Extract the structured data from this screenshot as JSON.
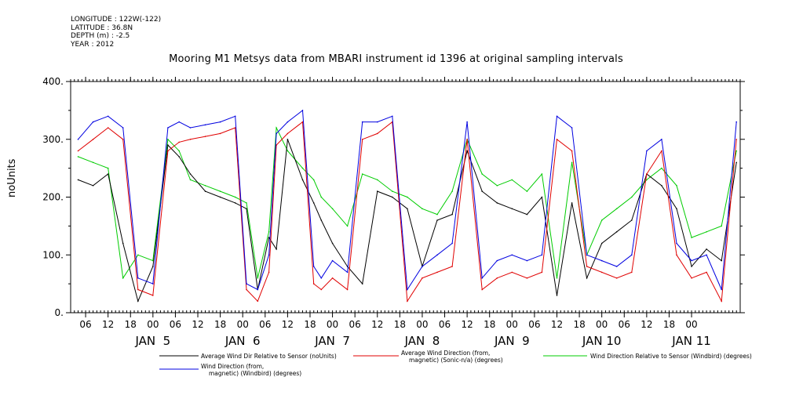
{
  "header": {
    "meta_lines": [
      "LONGITUDE : 122W(-122)",
      "LATITUDE : 36.8N",
      "DEPTH (m) : -2.5",
      "YEAR : 2012"
    ],
    "title": "Mooring M1 Metsys data from MBARI instrument id 1396 at original sampling intervals"
  },
  "chart_data": {
    "type": "line",
    "title": "Mooring M1 Metsys data from MBARI instrument id 1396 at original sampling intervals",
    "xlabel": "",
    "ylabel": "noUnits",
    "ylim": [
      0,
      400
    ],
    "xlim": [
      "2012-01-04T14:00",
      "2012-01-12T01:00"
    ],
    "y_ticks": [
      0,
      100,
      200,
      300,
      400
    ],
    "y_tick_labels": [
      "0.",
      "100.",
      "200.",
      "300.",
      "400."
    ],
    "x_tick_hours": [
      "06",
      "12",
      "18",
      "00",
      "06",
      "12",
      "18",
      "00",
      "06",
      "12",
      "18",
      "00",
      "06",
      "12",
      "18",
      "00",
      "06",
      "12",
      "18",
      "00",
      "06",
      "12",
      "18",
      "00",
      "06",
      "12",
      "18",
      "00"
    ],
    "day_labels": [
      "JAN  5",
      "JAN  6",
      "JAN  7",
      "JAN  8",
      "JAN  9",
      "JAN 10",
      "JAN 11"
    ],
    "grid": false,
    "legend_position": "bottom",
    "colors": {
      "series1": "#000000",
      "series2": "#e00000",
      "series3": "#00cc00",
      "series4": "#0000e0"
    },
    "series": [
      {
        "name": "Average Wind Dir Relative to Sensor (noUnits)",
        "x": [
          "2012-01-04T16:00",
          "2012-01-04T20:00",
          "2012-01-05T00:00",
          "2012-01-05T04:00",
          "2012-01-05T08:00",
          "2012-01-05T12:00",
          "2012-01-05T16:00",
          "2012-01-05T19:00",
          "2012-01-05T22:00",
          "2012-01-06T02:00",
          "2012-01-06T06:00",
          "2012-01-06T10:00",
          "2012-01-06T13:00",
          "2012-01-06T16:00",
          "2012-01-06T19:00",
          "2012-01-06T21:00",
          "2012-01-07T00:00",
          "2012-01-07T04:00",
          "2012-01-07T07:00",
          "2012-01-07T09:00",
          "2012-01-07T12:00",
          "2012-01-07T16:00",
          "2012-01-07T20:00",
          "2012-01-08T00:00",
          "2012-01-08T04:00",
          "2012-01-08T08:00",
          "2012-01-08T12:00",
          "2012-01-08T16:00",
          "2012-01-08T20:00",
          "2012-01-09T00:00",
          "2012-01-09T04:00",
          "2012-01-09T08:00",
          "2012-01-09T12:00",
          "2012-01-09T16:00",
          "2012-01-09T20:00",
          "2012-01-10T00:00",
          "2012-01-10T04:00",
          "2012-01-10T08:00",
          "2012-01-10T12:00",
          "2012-01-10T16:00",
          "2012-01-10T20:00",
          "2012-01-11T00:00",
          "2012-01-11T04:00",
          "2012-01-11T08:00",
          "2012-01-11T12:00",
          "2012-01-11T16:00",
          "2012-01-11T20:00",
          "2012-01-12T00:00"
        ],
        "values": [
          230,
          220,
          240,
          120,
          20,
          80,
          290,
          270,
          240,
          210,
          200,
          190,
          180,
          40,
          130,
          110,
          300,
          230,
          190,
          160,
          120,
          80,
          50,
          210,
          200,
          180,
          80,
          160,
          170,
          280,
          210,
          190,
          180,
          170,
          200,
          30,
          190,
          60,
          120,
          140,
          160,
          240,
          220,
          180,
          80,
          110,
          90,
          260
        ]
      },
      {
        "name": "Average Wind Direction (from, magnetic) (Sonic-n/a) (degrees)",
        "x": [
          "2012-01-04T16:00",
          "2012-01-04T20:00",
          "2012-01-05T00:00",
          "2012-01-05T04:00",
          "2012-01-05T08:00",
          "2012-01-05T12:00",
          "2012-01-05T16:00",
          "2012-01-05T19:00",
          "2012-01-05T22:00",
          "2012-01-06T02:00",
          "2012-01-06T06:00",
          "2012-01-06T10:00",
          "2012-01-06T13:00",
          "2012-01-06T16:00",
          "2012-01-06T19:00",
          "2012-01-06T21:00",
          "2012-01-07T00:00",
          "2012-01-07T04:00",
          "2012-01-07T07:00",
          "2012-01-07T09:00",
          "2012-01-07T12:00",
          "2012-01-07T16:00",
          "2012-01-07T20:00",
          "2012-01-08T00:00",
          "2012-01-08T04:00",
          "2012-01-08T08:00",
          "2012-01-08T12:00",
          "2012-01-08T16:00",
          "2012-01-08T20:00",
          "2012-01-09T00:00",
          "2012-01-09T04:00",
          "2012-01-09T08:00",
          "2012-01-09T12:00",
          "2012-01-09T16:00",
          "2012-01-09T20:00",
          "2012-01-10T00:00",
          "2012-01-10T04:00",
          "2012-01-10T08:00",
          "2012-01-10T12:00",
          "2012-01-10T16:00",
          "2012-01-10T20:00",
          "2012-01-11T00:00",
          "2012-01-11T04:00",
          "2012-01-11T08:00",
          "2012-01-11T12:00",
          "2012-01-11T16:00",
          "2012-01-11T20:00",
          "2012-01-12T00:00"
        ],
        "values": [
          280,
          300,
          320,
          300,
          40,
          30,
          280,
          295,
          300,
          305,
          310,
          320,
          40,
          20,
          70,
          290,
          310,
          330,
          50,
          40,
          60,
          40,
          300,
          310,
          330,
          20,
          60,
          70,
          80,
          300,
          40,
          60,
          70,
          60,
          70,
          300,
          280,
          80,
          70,
          60,
          70,
          240,
          280,
          100,
          60,
          70,
          20,
          300
        ]
      },
      {
        "name": "Wind Direction Relative to Sensor (Windbird) (degrees)",
        "x": [
          "2012-01-04T16:00",
          "2012-01-04T20:00",
          "2012-01-05T00:00",
          "2012-01-05T04:00",
          "2012-01-05T08:00",
          "2012-01-05T12:00",
          "2012-01-05T16:00",
          "2012-01-05T19:00",
          "2012-01-05T22:00",
          "2012-01-06T02:00",
          "2012-01-06T06:00",
          "2012-01-06T10:00",
          "2012-01-06T13:00",
          "2012-01-06T16:00",
          "2012-01-06T19:00",
          "2012-01-06T21:00",
          "2012-01-07T00:00",
          "2012-01-07T04:00",
          "2012-01-07T07:00",
          "2012-01-07T09:00",
          "2012-01-07T12:00",
          "2012-01-07T16:00",
          "2012-01-07T20:00",
          "2012-01-08T00:00",
          "2012-01-08T04:00",
          "2012-01-08T08:00",
          "2012-01-08T12:00",
          "2012-01-08T16:00",
          "2012-01-08T20:00",
          "2012-01-09T00:00",
          "2012-01-09T04:00",
          "2012-01-09T08:00",
          "2012-01-09T12:00",
          "2012-01-09T16:00",
          "2012-01-09T20:00",
          "2012-01-10T00:00",
          "2012-01-10T04:00",
          "2012-01-10T08:00",
          "2012-01-10T12:00",
          "2012-01-10T16:00",
          "2012-01-10T20:00",
          "2012-01-11T00:00",
          "2012-01-11T04:00",
          "2012-01-11T08:00",
          "2012-01-11T12:00",
          "2012-01-11T16:00",
          "2012-01-11T20:00",
          "2012-01-12T00:00"
        ],
        "values": [
          270,
          260,
          250,
          60,
          100,
          90,
          300,
          280,
          230,
          220,
          210,
          200,
          190,
          60,
          140,
          320,
          280,
          250,
          230,
          200,
          180,
          150,
          240,
          230,
          210,
          200,
          180,
          170,
          210,
          300,
          240,
          220,
          230,
          210,
          240,
          60,
          260,
          100,
          160,
          180,
          200,
          230,
          250,
          220,
          130,
          140,
          150,
          280
        ]
      },
      {
        "name": "Wind Direction (from, magnetic) (Windbird) (degrees)",
        "x": [
          "2012-01-04T16:00",
          "2012-01-04T20:00",
          "2012-01-05T00:00",
          "2012-01-05T04:00",
          "2012-01-05T08:00",
          "2012-01-05T12:00",
          "2012-01-05T16:00",
          "2012-01-05T19:00",
          "2012-01-05T22:00",
          "2012-01-06T02:00",
          "2012-01-06T06:00",
          "2012-01-06T10:00",
          "2012-01-06T13:00",
          "2012-01-06T16:00",
          "2012-01-06T19:00",
          "2012-01-06T21:00",
          "2012-01-07T00:00",
          "2012-01-07T04:00",
          "2012-01-07T07:00",
          "2012-01-07T09:00",
          "2012-01-07T12:00",
          "2012-01-07T16:00",
          "2012-01-07T20:00",
          "2012-01-08T00:00",
          "2012-01-08T04:00",
          "2012-01-08T08:00",
          "2012-01-08T12:00",
          "2012-01-08T16:00",
          "2012-01-08T20:00",
          "2012-01-09T00:00",
          "2012-01-09T04:00",
          "2012-01-09T08:00",
          "2012-01-09T12:00",
          "2012-01-09T16:00",
          "2012-01-09T20:00",
          "2012-01-10T00:00",
          "2012-01-10T04:00",
          "2012-01-10T08:00",
          "2012-01-10T12:00",
          "2012-01-10T16:00",
          "2012-01-10T20:00",
          "2012-01-11T00:00",
          "2012-01-11T04:00",
          "2012-01-11T08:00",
          "2012-01-11T12:00",
          "2012-01-11T16:00",
          "2012-01-11T20:00",
          "2012-01-12T00:00"
        ],
        "values": [
          300,
          330,
          340,
          320,
          60,
          50,
          320,
          330,
          320,
          325,
          330,
          340,
          50,
          40,
          100,
          310,
          330,
          350,
          80,
          60,
          90,
          70,
          330,
          330,
          340,
          40,
          80,
          100,
          120,
          330,
          60,
          90,
          100,
          90,
          100,
          340,
          320,
          100,
          90,
          80,
          100,
          280,
          300,
          120,
          90,
          100,
          40,
          330
        ]
      }
    ]
  }
}
